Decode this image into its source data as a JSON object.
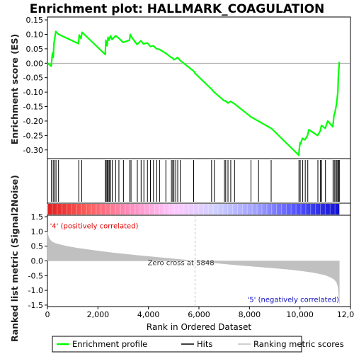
{
  "chart_data": {
    "type": "line",
    "title": "Enrichment plot: HALLMARK_COAGULATION",
    "panels": {
      "enrichment": {
        "ylabel": "Enrichment score (ES)",
        "ylim": [
          -0.33,
          0.16
        ],
        "yticks": [
          0.15,
          0.1,
          0.05,
          0.0,
          -0.05,
          -0.1,
          -0.15,
          -0.2,
          -0.25,
          -0.3
        ],
        "ytick_labels": [
          "0.15",
          "0.10",
          "0.05",
          "0.00",
          "-0.05",
          "-0.10",
          "-0.15",
          "-0.20",
          "-0.25",
          "-0.30"
        ],
        "series": [
          {
            "name": "Enrichment profile",
            "color": "#00ff00",
            "x": [
              0,
              150,
              200,
              230,
              260,
              330,
              440,
              1230,
              1260,
              1330,
              1370,
              2290,
              2310,
              2360,
              2400,
              2440,
              2500,
              2560,
              2700,
              2810,
              3000,
              3250,
              3280,
              3320,
              3550,
              3700,
              3800,
              3960,
              4070,
              4200,
              4320,
              4430,
              4680,
              4900,
              4960,
              5000,
              5080,
              5150,
              5250,
              5800,
              5850,
              6500,
              6600,
              7000,
              7050,
              7150,
              7250,
              7400,
              8050,
              8150,
              8350,
              8850,
              8900,
              9950,
              10000,
              10020,
              10100,
              10200,
              10300,
              10350,
              10700,
              10800,
              10850,
              11000,
              11100,
              11300,
              11350,
              11400,
              11450,
              11500,
              11520,
              11560
            ],
            "y": [
              0.0,
              -0.01,
              0.035,
              0.02,
              0.07,
              0.11,
              0.1,
              0.068,
              0.098,
              0.085,
              0.107,
              0.03,
              0.08,
              0.06,
              0.09,
              0.08,
              0.095,
              0.082,
              0.095,
              0.088,
              0.072,
              0.08,
              0.1,
              0.092,
              0.065,
              0.078,
              0.067,
              0.07,
              0.058,
              0.06,
              0.05,
              0.048,
              0.035,
              0.02,
              0.018,
              0.012,
              0.015,
              0.02,
              0.01,
              -0.028,
              -0.035,
              -0.09,
              -0.1,
              -0.13,
              -0.13,
              -0.138,
              -0.132,
              -0.14,
              -0.185,
              -0.19,
              -0.2,
              -0.225,
              -0.228,
              -0.318,
              -0.275,
              -0.28,
              -0.26,
              -0.265,
              -0.25,
              -0.23,
              -0.25,
              -0.235,
              -0.215,
              -0.225,
              -0.2,
              -0.22,
              -0.18,
              -0.165,
              -0.14,
              -0.1,
              -0.045,
              0.005
            ]
          }
        ]
      },
      "hits": {
        "x": [
          160,
          230,
          290,
          340,
          440,
          1240,
          1360,
          2290,
          2330,
          2370,
          2410,
          2450,
          2510,
          2570,
          2700,
          2830,
          3010,
          3260,
          3310,
          3560,
          3710,
          3820,
          3960,
          4080,
          4200,
          4330,
          4440,
          4690,
          4910,
          4960,
          5010,
          5080,
          5160,
          5260,
          5790,
          6500,
          6610,
          7010,
          7060,
          7150,
          7260,
          7410,
          8060,
          8360,
          8860,
          9960,
          10010,
          10110,
          10210,
          10310,
          10710,
          10810,
          10860,
          11010,
          11310,
          11360,
          11410,
          11460,
          11500,
          11530,
          11560
        ]
      },
      "ranking_bar": {
        "color_stops": [
          "#e02020",
          "#ff6060",
          "#ff90c0",
          "#ffc8ff",
          "#d0d0ff",
          "#a0a0ff",
          "#5050ff",
          "#1010d0"
        ]
      },
      "ranked_metric": {
        "ylabel": "Ranked list metric (Signal2Noise)",
        "ylim": [
          -1.55,
          1.55
        ],
        "yticks": [
          1.5,
          1.0,
          0.5,
          0.0,
          -0.5,
          -1.0,
          -1.5
        ],
        "ytick_labels": [
          "1.5",
          "1.0",
          "0.5",
          "0.0",
          "-0.5",
          "-1.0",
          "-1.5"
        ],
        "x": [
          0,
          20,
          60,
          120,
          200,
          300,
          500,
          800,
          1200,
          1800,
          2500,
          3500,
          4500,
          5500,
          5848,
          6500,
          7500,
          8500,
          9500,
          10000,
          10500,
          10800,
          11000,
          11200,
          11350,
          11450,
          11500,
          11530,
          11560
        ],
        "y": [
          1.0,
          0.88,
          0.78,
          0.7,
          0.64,
          0.6,
          0.55,
          0.49,
          0.43,
          0.36,
          0.28,
          0.19,
          0.11,
          0.03,
          0.0,
          -0.06,
          -0.14,
          -0.21,
          -0.28,
          -0.33,
          -0.39,
          -0.44,
          -0.48,
          -0.55,
          -0.62,
          -0.72,
          -0.85,
          -1.05,
          -1.45
        ],
        "fill_color": "#c0c0c0",
        "annotations": [
          {
            "text": "'4' (positively correlated)",
            "color": "#e00000",
            "x": 100,
            "y": 1.2
          },
          {
            "text": "Zero cross at 5848",
            "color": "#303030",
            "x": 5848,
            "y": -0.05
          },
          {
            "text": "'5' (negatively correlated)",
            "color": "#1010c0",
            "x": 11550,
            "y": -1.3
          }
        ],
        "zero_cross": 5848
      }
    },
    "x_axis": {
      "xlabel": "Rank in Ordered Dataset",
      "xlim": [
        0,
        12000
      ],
      "xticks": [
        0,
        2000,
        4000,
        6000,
        8000,
        10000,
        12000
      ],
      "xtick_labels": [
        "0",
        "2,000",
        "4,000",
        "6,000",
        "8,000",
        "10,000",
        "12,000"
      ]
    },
    "legend": {
      "placement": "bottom",
      "entries": [
        {
          "label": "Enrichment profile",
          "color": "#00ff00",
          "style": "line"
        },
        {
          "label": "Hits",
          "color": "#000000",
          "style": "line"
        },
        {
          "label": "Ranking metric scores",
          "color": "#c0c0c0",
          "style": "line"
        }
      ]
    }
  }
}
